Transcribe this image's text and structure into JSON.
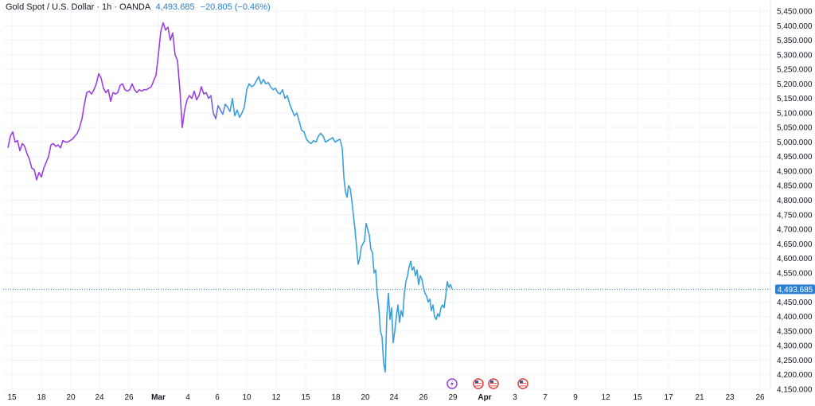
{
  "header": {
    "title": "Gold Spot / U.S. Dollar · 1h · OANDA",
    "price": "4,493.685",
    "change": "−20.805 (−0.46%)"
  },
  "colors": {
    "line_start": "#9b3fe0",
    "line_end": "#3aa0dc",
    "price_tag": "#2a7fd4",
    "grid": "#f0f3fa",
    "price_line": "#2a7fd4"
  },
  "chart_data": {
    "type": "line",
    "title": "Gold Spot / U.S. Dollar · 1h · OANDA",
    "xlabel": "",
    "ylabel": "",
    "ylim": [
      4150,
      5450
    ],
    "xlim": [
      0,
      964
    ],
    "grid": true,
    "current_price": 4493.685,
    "current_price_label": "4,493.685",
    "y_ticks": [
      {
        "value": 5450,
        "label": "5,450.000"
      },
      {
        "value": 5400,
        "label": "5,400.000"
      },
      {
        "value": 5350,
        "label": "5,350.000"
      },
      {
        "value": 5300,
        "label": "5,300.000"
      },
      {
        "value": 5250,
        "label": "5,250.000"
      },
      {
        "value": 5200,
        "label": "5,200.000"
      },
      {
        "value": 5150,
        "label": "5,150.000"
      },
      {
        "value": 5100,
        "label": "5,100.000"
      },
      {
        "value": 5050,
        "label": "5,050.000"
      },
      {
        "value": 5000,
        "label": "5,000.000"
      },
      {
        "value": 4950,
        "label": "4,950.000"
      },
      {
        "value": 4900,
        "label": "4,900.000"
      },
      {
        "value": 4850,
        "label": "4,850.000"
      },
      {
        "value": 4800,
        "label": "4,800.000"
      },
      {
        "value": 4750,
        "label": "4,750.000"
      },
      {
        "value": 4700,
        "label": "4,700.000"
      },
      {
        "value": 4650,
        "label": "4,650.000"
      },
      {
        "value": 4600,
        "label": "4,600.000"
      },
      {
        "value": 4550,
        "label": "4,550.000"
      },
      {
        "value": 4450,
        "label": "4,450.000"
      },
      {
        "value": 4400,
        "label": "4,400.000"
      },
      {
        "value": 4350,
        "label": "4,350.000"
      },
      {
        "value": 4300,
        "label": "4,300.000"
      },
      {
        "value": 4250,
        "label": "4,250.000"
      },
      {
        "value": 4200,
        "label": "4,200.000"
      },
      {
        "value": 4150,
        "label": "4,150.000"
      }
    ],
    "x_ticks": [
      {
        "pos": 11,
        "label": "15",
        "bold": false
      },
      {
        "pos": 48,
        "label": "18",
        "bold": false
      },
      {
        "pos": 85,
        "label": "20",
        "bold": false
      },
      {
        "pos": 121,
        "label": "24",
        "bold": false
      },
      {
        "pos": 158,
        "label": "26",
        "bold": false
      },
      {
        "pos": 195,
        "label": "Mar",
        "bold": true
      },
      {
        "pos": 232,
        "label": "4",
        "bold": false
      },
      {
        "pos": 269,
        "label": "6",
        "bold": false
      },
      {
        "pos": 306,
        "label": "10",
        "bold": false
      },
      {
        "pos": 343,
        "label": "12",
        "bold": false
      },
      {
        "pos": 380,
        "label": "15",
        "bold": false
      },
      {
        "pos": 418,
        "label": "18",
        "bold": false
      },
      {
        "pos": 455,
        "label": "20",
        "bold": false
      },
      {
        "pos": 491,
        "label": "24",
        "bold": false
      },
      {
        "pos": 528,
        "label": "26",
        "bold": false
      },
      {
        "pos": 565,
        "label": "29",
        "bold": false
      },
      {
        "pos": 605,
        "label": "Apr",
        "bold": true
      },
      {
        "pos": 643,
        "label": "3",
        "bold": false
      },
      {
        "pos": 681,
        "label": "7",
        "bold": false
      },
      {
        "pos": 719,
        "label": "9",
        "bold": false
      },
      {
        "pos": 757,
        "label": "12",
        "bold": false
      },
      {
        "pos": 797,
        "label": "15",
        "bold": false
      },
      {
        "pos": 836,
        "label": "17",
        "bold": false
      },
      {
        "pos": 875,
        "label": "21",
        "bold": false
      },
      {
        "pos": 913,
        "label": "23",
        "bold": false
      },
      {
        "pos": 951,
        "label": "26",
        "bold": false
      }
    ],
    "events": [
      {
        "pos": 564,
        "icon": "lightning-icon"
      },
      {
        "pos": 597,
        "icon": "us-flag-icon"
      },
      {
        "pos": 616,
        "icon": "us-flag-icon"
      },
      {
        "pos": 653,
        "icon": "us-flag-icon"
      }
    ],
    "series": [
      {
        "values": [
          [
            6,
            4980
          ],
          [
            9,
            5020
          ],
          [
            12,
            5035
          ],
          [
            15,
            5000
          ],
          [
            18,
            5005
          ],
          [
            21,
            4970
          ],
          [
            24,
            4995
          ],
          [
            27,
            4985
          ],
          [
            30,
            4960
          ],
          [
            33,
            4940
          ],
          [
            36,
            4910
          ],
          [
            39,
            4905
          ],
          [
            42,
            4870
          ],
          [
            45,
            4895
          ],
          [
            48,
            4880
          ],
          [
            51,
            4910
          ],
          [
            54,
            4930
          ],
          [
            57,
            4950
          ],
          [
            60,
            4990
          ],
          [
            63,
            4995
          ],
          [
            66,
            4985
          ],
          [
            69,
            4990
          ],
          [
            72,
            4980
          ],
          [
            75,
            5005
          ],
          [
            78,
            5000
          ],
          [
            81,
            5000
          ],
          [
            84,
            5005
          ],
          [
            87,
            5010
          ],
          [
            90,
            5020
          ],
          [
            93,
            5030
          ],
          [
            96,
            5050
          ],
          [
            99,
            5080
          ],
          [
            102,
            5130
          ],
          [
            105,
            5170
          ],
          [
            108,
            5175
          ],
          [
            111,
            5165
          ],
          [
            114,
            5180
          ],
          [
            117,
            5200
          ],
          [
            120,
            5235
          ],
          [
            123,
            5220
          ],
          [
            126,
            5185
          ],
          [
            129,
            5170
          ],
          [
            132,
            5180
          ],
          [
            135,
            5140
          ],
          [
            138,
            5170
          ],
          [
            141,
            5165
          ],
          [
            144,
            5170
          ],
          [
            147,
            5195
          ],
          [
            150,
            5200
          ],
          [
            153,
            5180
          ],
          [
            156,
            5175
          ],
          [
            159,
            5180
          ],
          [
            162,
            5200
          ],
          [
            165,
            5180
          ],
          [
            168,
            5170
          ],
          [
            171,
            5180
          ],
          [
            174,
            5175
          ],
          [
            177,
            5180
          ],
          [
            180,
            5180
          ],
          [
            183,
            5185
          ],
          [
            186,
            5190
          ],
          [
            189,
            5210
          ],
          [
            192,
            5230
          ],
          [
            195,
            5300
          ],
          [
            198,
            5380
          ],
          [
            201,
            5410
          ],
          [
            204,
            5385
          ],
          [
            207,
            5395
          ],
          [
            210,
            5350
          ],
          [
            213,
            5375
          ],
          [
            216,
            5300
          ],
          [
            219,
            5280
          ],
          [
            222,
            5180
          ],
          [
            225,
            5050
          ],
          [
            228,
            5110
          ],
          [
            231,
            5145
          ],
          [
            234,
            5160
          ],
          [
            237,
            5150
          ],
          [
            240,
            5175
          ],
          [
            243,
            5145
          ],
          [
            246,
            5160
          ],
          [
            249,
            5190
          ],
          [
            252,
            5165
          ],
          [
            255,
            5170
          ],
          [
            258,
            5150
          ],
          [
            261,
            5160
          ],
          [
            264,
            5100
          ],
          [
            267,
            5080
          ],
          [
            270,
            5125
          ],
          [
            273,
            5110
          ],
          [
            276,
            5095
          ],
          [
            279,
            5130
          ],
          [
            282,
            5120
          ],
          [
            285,
            5105
          ],
          [
            288,
            5150
          ],
          [
            291,
            5090
          ],
          [
            294,
            5110
          ],
          [
            297,
            5085
          ],
          [
            300,
            5100
          ],
          [
            303,
            5120
          ],
          [
            306,
            5180
          ],
          [
            309,
            5200
          ],
          [
            312,
            5190
          ],
          [
            315,
            5195
          ],
          [
            318,
            5210
          ],
          [
            321,
            5225
          ],
          [
            324,
            5200
          ],
          [
            327,
            5215
          ],
          [
            330,
            5200
          ],
          [
            333,
            5205
          ],
          [
            336,
            5190
          ],
          [
            339,
            5180
          ],
          [
            342,
            5185
          ],
          [
            345,
            5170
          ],
          [
            348,
            5165
          ],
          [
            351,
            5180
          ],
          [
            354,
            5150
          ],
          [
            357,
            5160
          ],
          [
            360,
            5130
          ],
          [
            363,
            5110
          ],
          [
            366,
            5090
          ],
          [
            369,
            5100
          ],
          [
            372,
            5070
          ],
          [
            375,
            5040
          ],
          [
            378,
            5035
          ],
          [
            381,
            5010
          ],
          [
            384,
            5000
          ],
          [
            387,
            4995
          ],
          [
            390,
            5005
          ],
          [
            393,
            5000
          ],
          [
            396,
            5020
          ],
          [
            399,
            5030
          ],
          [
            402,
            5020
          ],
          [
            405,
            5000
          ],
          [
            408,
            5005
          ],
          [
            411,
            5010
          ],
          [
            414,
            5015
          ],
          [
            417,
            5000
          ],
          [
            420,
            5005
          ],
          [
            423,
            5010
          ],
          [
            426,
            4980
          ],
          [
            428,
            4880
          ],
          [
            430,
            4830
          ],
          [
            432,
            4810
          ],
          [
            434,
            4850
          ],
          [
            436,
            4840
          ],
          [
            438,
            4800
          ],
          [
            440,
            4750
          ],
          [
            442,
            4700
          ],
          [
            444,
            4640
          ],
          [
            446,
            4580
          ],
          [
            448,
            4600
          ],
          [
            450,
            4640
          ],
          [
            452,
            4650
          ],
          [
            454,
            4660
          ],
          [
            456,
            4720
          ],
          [
            458,
            4700
          ],
          [
            460,
            4680
          ],
          [
            462,
            4630
          ],
          [
            464,
            4620
          ],
          [
            466,
            4550
          ],
          [
            468,
            4560
          ],
          [
            470,
            4480
          ],
          [
            472,
            4430
          ],
          [
            474,
            4350
          ],
          [
            476,
            4330
          ],
          [
            478,
            4240
          ],
          [
            480,
            4210
          ],
          [
            482,
            4400
          ],
          [
            484,
            4480
          ],
          [
            486,
            4390
          ],
          [
            488,
            4430
          ],
          [
            490,
            4310
          ],
          [
            492,
            4350
          ],
          [
            494,
            4400
          ],
          [
            496,
            4440
          ],
          [
            498,
            4380
          ],
          [
            500,
            4420
          ],
          [
            502,
            4400
          ],
          [
            504,
            4480
          ],
          [
            506,
            4520
          ],
          [
            508,
            4540
          ],
          [
            510,
            4570
          ],
          [
            512,
            4590
          ],
          [
            514,
            4560
          ],
          [
            516,
            4570
          ],
          [
            518,
            4540
          ],
          [
            520,
            4560
          ],
          [
            522,
            4510
          ],
          [
            524,
            4540
          ],
          [
            526,
            4530
          ],
          [
            528,
            4500
          ],
          [
            530,
            4480
          ],
          [
            532,
            4470
          ],
          [
            534,
            4450
          ],
          [
            536,
            4460
          ],
          [
            538,
            4420
          ],
          [
            540,
            4440
          ],
          [
            542,
            4400
          ],
          [
            544,
            4390
          ],
          [
            546,
            4410
          ],
          [
            548,
            4400
          ],
          [
            550,
            4430
          ],
          [
            552,
            4440
          ],
          [
            554,
            4430
          ],
          [
            556,
            4470
          ],
          [
            558,
            4520
          ],
          [
            560,
            4500
          ],
          [
            562,
            4510
          ],
          [
            564,
            4495
          ]
        ]
      }
    ]
  }
}
